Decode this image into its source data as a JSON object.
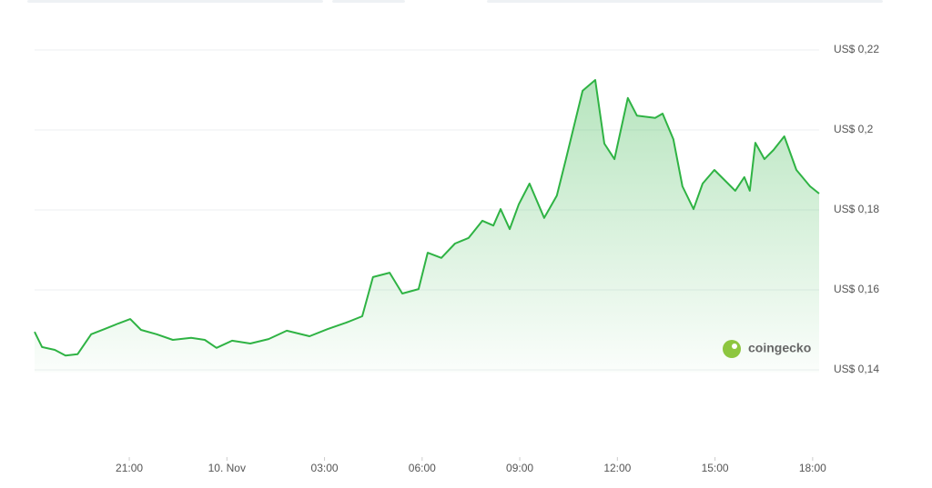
{
  "chart_data": {
    "type": "area",
    "watermark": "coingecko",
    "color": "#2fb344",
    "grid": true,
    "ylim": [
      0.14,
      0.22
    ],
    "yticks": [
      {
        "value": 0.14,
        "label": "US$ 0,14"
      },
      {
        "value": 0.16,
        "label": "US$ 0,16"
      },
      {
        "value": 0.18,
        "label": "US$ 0,18"
      },
      {
        "value": 0.2,
        "label": "US$ 0,2"
      },
      {
        "value": 0.22,
        "label": "US$ 0,22"
      }
    ],
    "xlim": [
      18.09,
      42.2
    ],
    "xticks": [
      {
        "value": 21,
        "label": "21:00"
      },
      {
        "value": 24,
        "label": "10. Nov"
      },
      {
        "value": 27,
        "label": "03:00"
      },
      {
        "value": 30,
        "label": "06:00"
      },
      {
        "value": 33,
        "label": "09:00"
      },
      {
        "value": 36,
        "label": "12:00"
      },
      {
        "value": 39,
        "label": "15:00"
      },
      {
        "value": 42,
        "label": "18:00"
      }
    ],
    "x": [
      18.09,
      18.32,
      18.71,
      19.04,
      19.41,
      19.83,
      20.24,
      20.66,
      21.03,
      21.36,
      21.84,
      22.34,
      22.9,
      23.32,
      23.68,
      24.16,
      24.72,
      25.28,
      25.84,
      26.54,
      27.1,
      27.66,
      28.16,
      28.49,
      29.0,
      29.39,
      29.89,
      30.17,
      30.59,
      31.01,
      31.43,
      31.85,
      32.19,
      32.41,
      32.69,
      32.97,
      33.3,
      33.75,
      34.14,
      34.42,
      34.93,
      35.32,
      35.6,
      35.91,
      36.32,
      36.6,
      37.16,
      37.39,
      37.72,
      38.0,
      38.34,
      38.62,
      38.98,
      39.4,
      39.62,
      39.9,
      40.07,
      40.24,
      40.52,
      40.8,
      41.13,
      41.5,
      41.92,
      42.2
    ],
    "values": [
      0.1495,
      0.1457,
      0.145,
      0.1436,
      0.1439,
      0.1489,
      0.1502,
      0.1516,
      0.1527,
      0.15,
      0.1489,
      0.1475,
      0.148,
      0.1475,
      0.1455,
      0.1473,
      0.1466,
      0.1477,
      0.1498,
      0.1484,
      0.1502,
      0.1518,
      0.1534,
      0.1632,
      0.1643,
      0.1591,
      0.1602,
      0.1693,
      0.168,
      0.1716,
      0.173,
      0.1773,
      0.1761,
      0.1802,
      0.1752,
      0.1814,
      0.1866,
      0.178,
      0.1836,
      0.1927,
      0.2098,
      0.2125,
      0.1966,
      0.1927,
      0.208,
      0.2036,
      0.203,
      0.2041,
      0.1977,
      0.1859,
      0.1802,
      0.1866,
      0.19,
      0.1866,
      0.1848,
      0.1882,
      0.1848,
      0.1968,
      0.1927,
      0.195,
      0.1984,
      0.19,
      0.1859,
      0.1841
    ]
  }
}
